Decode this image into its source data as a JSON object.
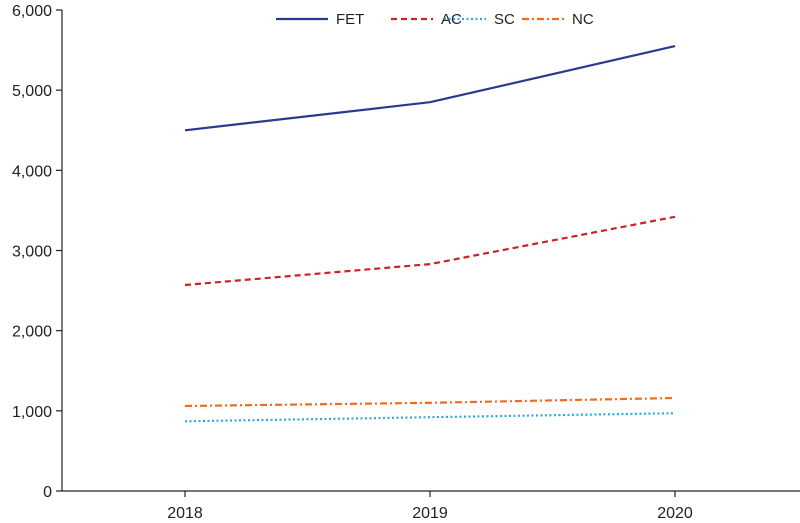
{
  "chart_data": {
    "type": "line",
    "title": "",
    "xlabel": "",
    "ylabel": "",
    "categories": [
      "2018",
      "2019",
      "2020"
    ],
    "ylim": [
      0,
      6000
    ],
    "yticks": [
      0,
      1000,
      2000,
      3000,
      4000,
      5000,
      6000
    ],
    "ytick_labels": [
      "0",
      "1,000",
      "2,000",
      "3,000",
      "4,000",
      "5,000",
      "6,000"
    ],
    "grid": false,
    "legend_position": "top-center",
    "series": [
      {
        "name": "FET",
        "values": [
          4500,
          4850,
          5550
        ],
        "color": "#2b3990",
        "dash": "solid"
      },
      {
        "name": "AC",
        "values": [
          2570,
          2830,
          3420
        ],
        "color": "#cc2229",
        "dash": "dashed"
      },
      {
        "name": "SC",
        "values": [
          870,
          920,
          970
        ],
        "color": "#29abe2",
        "dash": "dotted"
      },
      {
        "name": "NC",
        "values": [
          1060,
          1100,
          1160
        ],
        "color": "#f26b1d",
        "dash": "dash-dot"
      }
    ]
  }
}
